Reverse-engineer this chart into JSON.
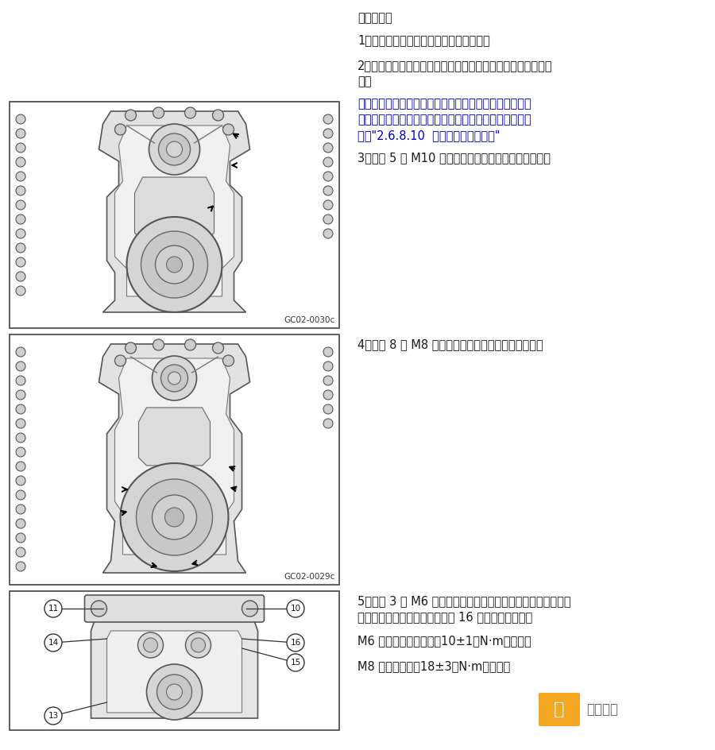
{
  "background_color": "#ffffff",
  "page_width": 9.0,
  "page_height": 9.44,
  "dpi": 100,
  "title": "安装程序：",
  "step1": "1、清洁正时锁罩及缸体上的残余密封胶。",
  "step2_l1": "2、在正时锁罩与缸体安装面均匀涂上专用密封胶，安装正时锁",
  "step2_l2": "罩。",
  "note_l1": "注意：在安装正时锁罩盖之前，注意检查正时锁条上面所",
  "note_l2": "做的记号是否一致，如果有偏差，请重新安装正时锁条，",
  "note_l3": "参见\"2.6.8.10  正时锁条组件的更换\"",
  "step3": "3、安装 5 颧 M10 正时锁罩紧固螺栓，但先不要拧紧。",
  "image1_label": "GC02-0030c",
  "step4": "4、安装 8 颧 M8 正时锁罩紧固螺栓，但先不要拧紧。",
  "image2_label": "GC02-0029c",
  "step5_l1": "5、安装 3 颧 M6 正时锁罩紧固螺栓及螺帽，并按图示顺序紧固",
  "step5_l2": "正时锁罩紧固螺栓及螺帽，共计 16 颧。力矩値如下：",
  "step5_m6": "M6 螺栓及螺帽力矩：（10±1）N·m（公制）",
  "step5_m8": "M8 螺栓力矩：（18±3）N·m（公制）",
  "watermark_cn": "汽修帮手",
  "watermark_char": "汽",
  "blue_color": "#0000cc",
  "black_color": "#1a1a1a",
  "orange_color": "#F5A623",
  "gray_text": "#666666"
}
